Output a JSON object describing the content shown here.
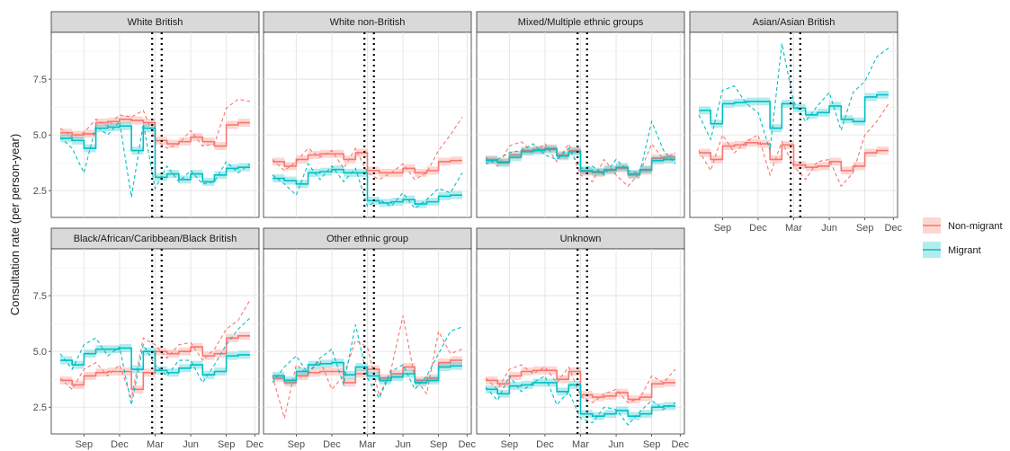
{
  "chart_data": {
    "type": "line",
    "ylabel": "Consultation rate (per person-year)",
    "xlabel": "",
    "y_ticks": [
      "2.5",
      "5.0",
      "7.5"
    ],
    "x_ticks": [
      "Sep",
      "Dec",
      "Mar",
      "Jun",
      "Sep",
      "Dec"
    ],
    "x_range": [
      "2019-07",
      "2021-01"
    ],
    "ylim": [
      1.3,
      9.6
    ],
    "intervention": "2020-03-23 to 2020-04-15 (dotted vertical lines)",
    "grid": true,
    "legend": {
      "position": "right",
      "entries": [
        {
          "name": "Non-migrant",
          "color": "#F8766D"
        },
        {
          "name": "Migrant",
          "color": "#00BFC4"
        }
      ]
    },
    "panels": [
      {
        "title": "White British",
        "series": [
          {
            "name": "Non-migrant",
            "fitted": [
              5.1,
              5.0,
              5.05,
              5.55,
              5.6,
              5.7,
              5.65,
              5.55,
              4.75,
              4.6,
              4.7,
              4.9,
              4.7,
              4.5,
              5.45,
              5.55,
              5.55
            ],
            "observed": [
              5.3,
              4.9,
              5.1,
              5.7,
              5.4,
              5.9,
              5.8,
              6.1,
              4.8,
              4.4,
              4.6,
              5.2,
              4.5,
              4.6,
              6.2,
              6.6,
              6.5
            ]
          },
          {
            "name": "Migrant",
            "fitted": [
              4.85,
              4.75,
              4.4,
              5.3,
              5.35,
              5.4,
              4.3,
              5.3,
              3.1,
              3.25,
              3.0,
              3.25,
              2.9,
              3.2,
              3.5,
              3.55,
              3.55
            ],
            "observed": [
              4.9,
              4.4,
              3.3,
              5.4,
              5.0,
              5.6,
              2.2,
              5.5,
              2.6,
              3.6,
              2.9,
              3.4,
              2.8,
              2.9,
              3.8,
              3.3,
              3.7
            ]
          }
        ]
      },
      {
        "title": "White non-British",
        "series": [
          {
            "name": "Non-migrant",
            "fitted": [
              3.8,
              3.6,
              3.9,
              4.1,
              4.15,
              4.15,
              3.9,
              4.2,
              3.4,
              3.3,
              3.3,
              3.5,
              3.3,
              3.4,
              3.8,
              3.85,
              3.85
            ],
            "observed": [
              3.9,
              3.4,
              3.8,
              4.4,
              4.0,
              4.3,
              3.5,
              4.4,
              3.3,
              3.0,
              3.3,
              3.7,
              3.0,
              3.3,
              4.3,
              5.0,
              5.8
            ]
          },
          {
            "name": "Migrant",
            "fitted": [
              3.05,
              2.95,
              2.8,
              3.3,
              3.35,
              3.45,
              3.3,
              3.3,
              2.05,
              1.95,
              2.0,
              2.1,
              1.9,
              2.0,
              2.25,
              2.3,
              2.3
            ],
            "observed": [
              3.2,
              2.8,
              2.3,
              3.7,
              3.0,
              3.6,
              2.9,
              3.5,
              1.8,
              2.1,
              1.8,
              2.4,
              1.7,
              2.1,
              2.6,
              2.4,
              3.3
            ]
          }
        ]
      },
      {
        "title": "Mixed/Multiple ethnic groups",
        "series": [
          {
            "name": "Non-migrant",
            "fitted": [
              3.9,
              3.8,
              4.1,
              4.3,
              4.35,
              4.4,
              4.1,
              4.3,
              3.35,
              3.3,
              3.4,
              3.5,
              3.2,
              3.4,
              3.95,
              4.0,
              4.0
            ],
            "observed": [
              4.0,
              3.6,
              4.5,
              4.7,
              4.2,
              4.6,
              3.8,
              4.6,
              3.2,
              2.9,
              3.9,
              3.2,
              2.7,
              3.3,
              4.6,
              3.9,
              4.2
            ]
          },
          {
            "name": "Migrant",
            "fitted": [
              3.85,
              3.75,
              4.0,
              4.25,
              4.3,
              4.35,
              4.05,
              4.25,
              3.4,
              3.35,
              3.45,
              3.55,
              3.25,
              3.45,
              3.85,
              3.9,
              3.9
            ],
            "observed": [
              3.7,
              3.9,
              4.2,
              4.3,
              4.6,
              4.1,
              3.9,
              4.4,
              3.5,
              3.6,
              3.2,
              3.9,
              3.4,
              3.3,
              5.6,
              4.3,
              3.7
            ]
          }
        ]
      },
      {
        "title": "Asian/Asian British",
        "series": [
          {
            "name": "Non-migrant",
            "fitted": [
              4.2,
              3.9,
              4.5,
              4.55,
              4.65,
              4.6,
              3.9,
              4.55,
              3.65,
              3.55,
              3.6,
              3.8,
              3.4,
              3.6,
              4.2,
              4.3,
              4.3
            ],
            "observed": [
              4.3,
              3.4,
              5.0,
              4.2,
              4.7,
              5.0,
              3.2,
              4.7,
              3.6,
              3.0,
              3.8,
              3.9,
              2.7,
              3.3,
              5.0,
              5.6,
              6.4
            ]
          },
          {
            "name": "Migrant",
            "fitted": [
              6.1,
              5.5,
              6.4,
              6.45,
              6.5,
              6.5,
              5.3,
              6.4,
              6.2,
              5.9,
              6.0,
              6.3,
              5.7,
              5.6,
              6.7,
              6.8,
              6.8
            ],
            "observed": [
              5.9,
              4.8,
              7.0,
              7.2,
              6.4,
              6.0,
              4.3,
              9.1,
              6.5,
              5.6,
              6.3,
              6.9,
              5.2,
              6.9,
              7.4,
              8.5,
              8.9
            ]
          }
        ]
      },
      {
        "title": "Black/African/Caribbean/Black British",
        "series": [
          {
            "name": "Non-migrant",
            "fitted": [
              3.7,
              3.5,
              3.9,
              4.05,
              4.1,
              4.1,
              3.3,
              4.05,
              5.0,
              4.9,
              5.0,
              5.2,
              4.8,
              4.9,
              5.6,
              5.7,
              5.7
            ],
            "observed": [
              3.8,
              3.3,
              4.2,
              4.5,
              3.9,
              4.4,
              2.9,
              5.6,
              5.3,
              4.7,
              5.3,
              5.4,
              4.6,
              5.1,
              6.0,
              6.4,
              7.3
            ]
          },
          {
            "name": "Migrant",
            "fitted": [
              4.6,
              4.4,
              4.9,
              5.1,
              5.1,
              5.15,
              4.2,
              5.0,
              4.15,
              4.05,
              4.25,
              4.4,
              3.95,
              4.1,
              4.8,
              4.85,
              4.85
            ],
            "observed": [
              4.9,
              4.2,
              5.3,
              5.6,
              4.8,
              5.2,
              2.6,
              5.3,
              4.4,
              3.9,
              4.6,
              4.6,
              3.6,
              4.4,
              5.3,
              6.0,
              6.5
            ]
          }
        ]
      },
      {
        "title": "Other ethnic group",
        "series": [
          {
            "name": "Non-migrant",
            "fitted": [
              3.8,
              3.6,
              3.9,
              4.05,
              4.1,
              4.1,
              3.6,
              4.0,
              4.2,
              3.8,
              4.0,
              4.3,
              3.7,
              3.8,
              4.5,
              4.6,
              4.6
            ],
            "observed": [
              3.9,
              2.0,
              4.4,
              4.0,
              4.6,
              3.3,
              3.9,
              5.5,
              5.2,
              3.0,
              4.2,
              6.6,
              3.8,
              3.1,
              5.9,
              4.9,
              5.1
            ]
          },
          {
            "name": "Migrant",
            "fitted": [
              3.9,
              3.7,
              4.1,
              4.4,
              4.45,
              4.5,
              3.95,
              4.3,
              3.9,
              3.7,
              3.85,
              4.0,
              3.6,
              3.7,
              4.3,
              4.35,
              4.35
            ],
            "observed": [
              3.6,
              4.3,
              4.8,
              4.0,
              4.7,
              5.1,
              3.5,
              6.2,
              3.8,
              2.9,
              4.1,
              4.4,
              3.3,
              3.9,
              4.9,
              5.9,
              6.1
            ]
          }
        ]
      },
      {
        "title": "Unknown",
        "series": [
          {
            "name": "Non-migrant",
            "fitted": [
              3.7,
              3.55,
              3.9,
              4.1,
              4.15,
              4.15,
              3.75,
              4.1,
              3.05,
              2.95,
              3.0,
              3.15,
              2.85,
              2.95,
              3.55,
              3.6,
              3.6
            ],
            "observed": [
              3.8,
              3.3,
              4.2,
              4.4,
              4.0,
              4.3,
              3.6,
              4.3,
              3.0,
              2.7,
              3.1,
              3.3,
              2.7,
              2.9,
              3.9,
              3.6,
              4.2
            ]
          },
          {
            "name": "Migrant",
            "fitted": [
              3.3,
              3.1,
              3.45,
              3.5,
              3.6,
              3.6,
              3.2,
              3.5,
              2.2,
              2.1,
              2.2,
              2.35,
              2.1,
              2.2,
              2.5,
              2.55,
              2.55
            ],
            "observed": [
              3.4,
              2.8,
              3.9,
              3.2,
              3.6,
              3.9,
              2.6,
              3.2,
              2.0,
              1.8,
              2.5,
              2.4,
              1.7,
              2.3,
              2.8,
              2.4,
              2.7
            ]
          }
        ]
      }
    ]
  }
}
